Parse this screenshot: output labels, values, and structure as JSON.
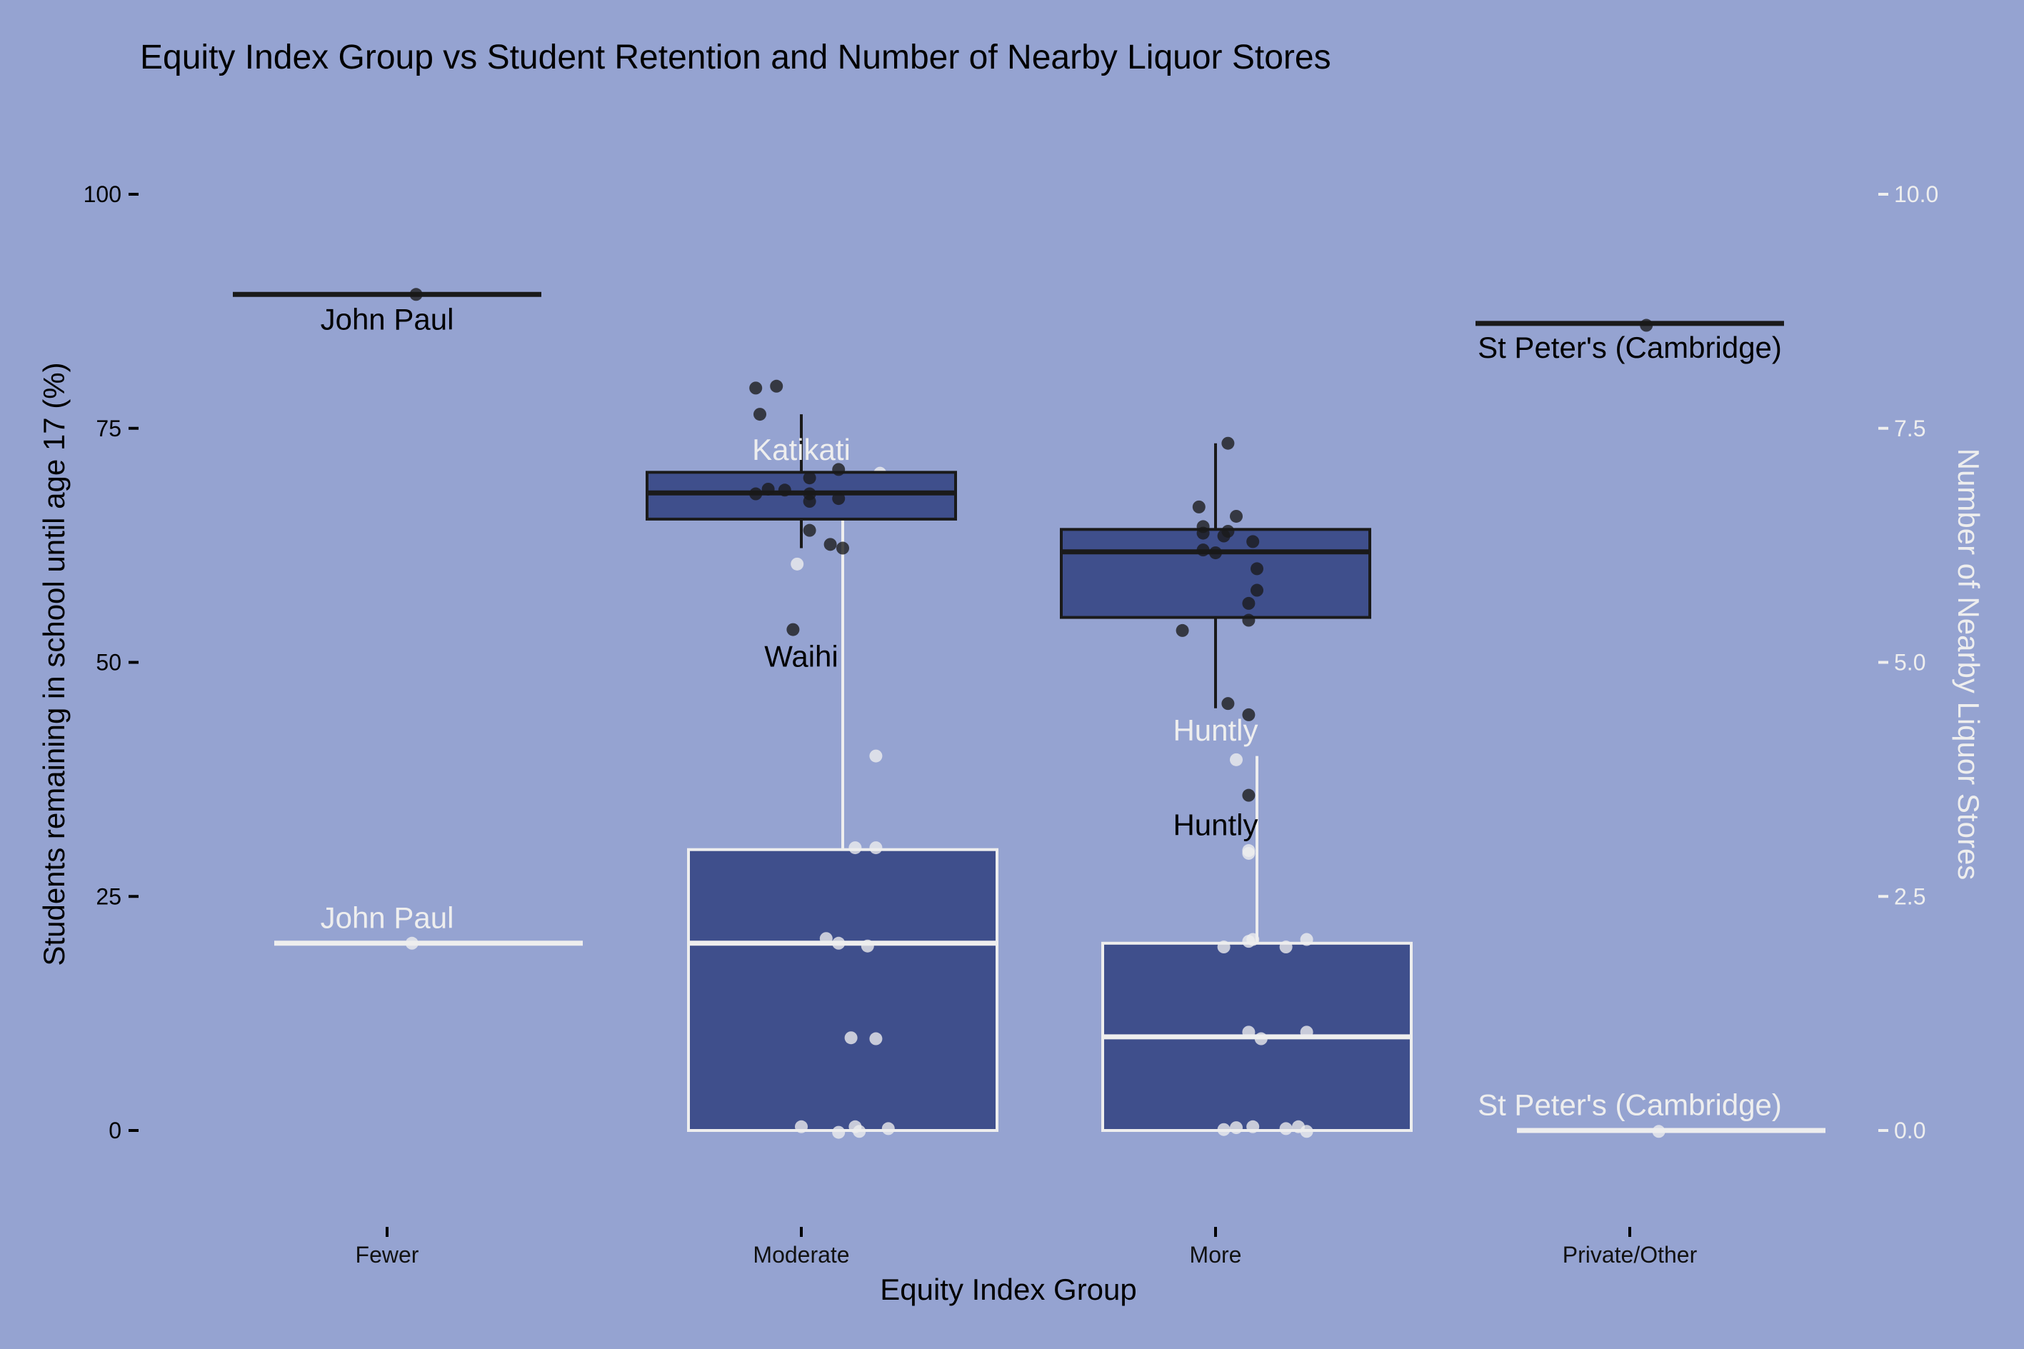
{
  "chart_data": {
    "type": "boxplot",
    "title": "Equity Index Group vs Student Retention and Number of Nearby Liquor Stores",
    "xlabel": "Equity Index Group",
    "ylabel": "Students remaining in school until age 17 (%)",
    "ylabel_right": "Number of Nearby Liquor Stores",
    "ylim": [
      0,
      100
    ],
    "ylim_right": [
      0,
      10
    ],
    "yticks": [
      "0",
      "25",
      "50",
      "75",
      "100"
    ],
    "yticks_right": [
      "0.0",
      "2.5",
      "5.0",
      "7.5",
      "10.0"
    ],
    "categories": [
      "Fewer",
      "Moderate",
      "More",
      "Private/Other"
    ],
    "colors": {
      "background": "#95a3d1",
      "box_fill": "#3f4f8c",
      "retention": "#1a1a1a",
      "liquor": "#eeeeee"
    },
    "series": [
      {
        "axis": "left",
        "boxes": [
          {
            "category": "Fewer",
            "min": 89.3,
            "q1": 89.3,
            "median": 89.3,
            "q3": 89.3,
            "max": 89.3
          },
          {
            "category": "Moderate",
            "min": 62.2,
            "q1": 65.3,
            "median": 68.1,
            "q3": 70.3,
            "max": 76.5
          },
          {
            "category": "More",
            "min": 45.1,
            "q1": 54.8,
            "median": 61.8,
            "q3": 64.2,
            "max": 73.4
          },
          {
            "category": "Private/Other",
            "min": 86.2,
            "q1": 86.2,
            "median": 86.2,
            "q3": 86.2,
            "max": 86.2
          }
        ],
        "points": [
          {
            "x": 0.07,
            "y": 89.3
          },
          {
            "x": 0.89,
            "y": 79.3
          },
          {
            "x": 0.94,
            "y": 79.5
          },
          {
            "x": 0.9,
            "y": 76.5
          },
          {
            "x": 0.92,
            "y": 68.5
          },
          {
            "x": 0.89,
            "y": 68.0
          },
          {
            "x": 0.96,
            "y": 68.4
          },
          {
            "x": 1.02,
            "y": 68.0
          },
          {
            "x": 1.02,
            "y": 67.2
          },
          {
            "x": 1.02,
            "y": 69.7
          },
          {
            "x": 1.09,
            "y": 70.6
          },
          {
            "x": 1.09,
            "y": 67.5
          },
          {
            "x": 1.02,
            "y": 64.1
          },
          {
            "x": 1.07,
            "y": 62.6
          },
          {
            "x": 1.1,
            "y": 62.2
          },
          {
            "x": 0.98,
            "y": 53.5
          },
          {
            "x": 1.96,
            "y": 66.6
          },
          {
            "x": 2.03,
            "y": 73.4
          },
          {
            "x": 1.97,
            "y": 64.5
          },
          {
            "x": 1.97,
            "y": 63.8
          },
          {
            "x": 2.02,
            "y": 63.5
          },
          {
            "x": 2.03,
            "y": 64.0
          },
          {
            "x": 2.05,
            "y": 65.6
          },
          {
            "x": 2.09,
            "y": 62.9
          },
          {
            "x": 1.97,
            "y": 62.0
          },
          {
            "x": 2.0,
            "y": 61.7
          },
          {
            "x": 2.1,
            "y": 60.0
          },
          {
            "x": 2.1,
            "y": 57.7
          },
          {
            "x": 2.08,
            "y": 56.3
          },
          {
            "x": 2.08,
            "y": 54.5
          },
          {
            "x": 1.92,
            "y": 53.4
          },
          {
            "x": 2.03,
            "y": 45.6
          },
          {
            "x": 2.08,
            "y": 44.4
          },
          {
            "x": 2.08,
            "y": 35.8
          },
          {
            "x": 3.04,
            "y": 86.0
          }
        ],
        "labels": [
          {
            "text": "John Paul",
            "x": 0.0,
            "y": 86.6
          },
          {
            "text": "Waihi",
            "x": 1.0,
            "y": 50.6
          },
          {
            "text": "Huntly",
            "x": 2.0,
            "y": 32.6
          },
          {
            "text": "St Peter's (Cambridge)",
            "x": 3.0,
            "y": 83.6
          }
        ]
      },
      {
        "axis": "right",
        "boxes": [
          {
            "category": "Fewer",
            "min": 2.0,
            "q1": 2.0,
            "median": 2.0,
            "q3": 2.0,
            "max": 2.0
          },
          {
            "category": "Moderate",
            "min": 0.0,
            "q1": 0.0,
            "median": 2.0,
            "q3": 3.0,
            "max": 7.0
          },
          {
            "category": "More",
            "min": 0.0,
            "q1": 0.0,
            "median": 1.0,
            "q3": 2.0,
            "max": 4.0
          },
          {
            "category": "Private/Other",
            "min": 0.0,
            "q1": 0.0,
            "median": 0.0,
            "q3": 0.0,
            "max": 0.0
          }
        ],
        "points": [
          {
            "x": -0.04,
            "y": 2.0
          },
          {
            "x": 0.89,
            "y": 6.05
          },
          {
            "x": 1.09,
            "y": 7.02
          },
          {
            "x": 1.08,
            "y": 4.0
          },
          {
            "x": 1.03,
            "y": 3.02
          },
          {
            "x": 1.08,
            "y": 3.02
          },
          {
            "x": 0.96,
            "y": 2.05
          },
          {
            "x": 0.99,
            "y": 2.0
          },
          {
            "x": 1.06,
            "y": 1.97
          },
          {
            "x": 1.02,
            "y": 0.99
          },
          {
            "x": 1.08,
            "y": 0.98
          },
          {
            "x": 0.9,
            "y": 0.04
          },
          {
            "x": 0.99,
            "y": -0.02
          },
          {
            "x": 1.03,
            "y": 0.04
          },
          {
            "x": 1.04,
            "y": -0.01
          },
          {
            "x": 1.11,
            "y": 0.02
          },
          {
            "x": 1.95,
            "y": 3.96
          },
          {
            "x": 1.98,
            "y": 2.99
          },
          {
            "x": 1.98,
            "y": 2.96
          },
          {
            "x": 1.92,
            "y": 1.96
          },
          {
            "x": 1.98,
            "y": 2.02
          },
          {
            "x": 1.99,
            "y": 2.04
          },
          {
            "x": 2.07,
            "y": 1.96
          },
          {
            "x": 2.12,
            "y": 2.04
          },
          {
            "x": 1.98,
            "y": 1.05
          },
          {
            "x": 2.01,
            "y": 0.98
          },
          {
            "x": 2.12,
            "y": 1.05
          },
          {
            "x": 1.92,
            "y": 0.01
          },
          {
            "x": 1.95,
            "y": 0.03
          },
          {
            "x": 1.99,
            "y": 0.04
          },
          {
            "x": 2.07,
            "y": 0.02
          },
          {
            "x": 2.1,
            "y": 0.04
          },
          {
            "x": 2.12,
            "y": -0.01
          },
          {
            "x": 2.97,
            "y": -0.01
          }
        ],
        "labels": [
          {
            "text": "John Paul",
            "x": 0.0,
            "y": 2.27
          },
          {
            "text": "Katikati",
            "x": 1.0,
            "y": 7.27
          },
          {
            "text": "Huntly",
            "x": 2.0,
            "y": 4.27
          },
          {
            "text": "St Peter's (Cambridge)",
            "x": 3.0,
            "y": 0.27
          }
        ]
      }
    ]
  }
}
